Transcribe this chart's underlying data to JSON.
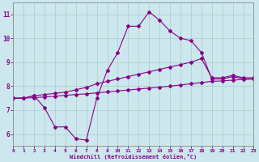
{
  "xlabel": "Windchill (Refroidissement éolien,°C)",
  "background_color": "#cce8ee",
  "grid_color": "#aaccc4",
  "line_color": "#880088",
  "xlim": [
    0,
    23
  ],
  "ylim": [
    5.5,
    11.5
  ],
  "xticks": [
    0,
    1,
    2,
    3,
    4,
    5,
    6,
    7,
    8,
    9,
    10,
    11,
    12,
    13,
    14,
    15,
    16,
    17,
    18,
    19,
    20,
    21,
    22,
    23
  ],
  "yticks": [
    6,
    7,
    8,
    9,
    10,
    11
  ],
  "line1_x": [
    0,
    1,
    2,
    3,
    4,
    5,
    6,
    7,
    8,
    9,
    10,
    11,
    12,
    13,
    14,
    15,
    16,
    17,
    18,
    19,
    20,
    21,
    22,
    23
  ],
  "line1_y": [
    7.5,
    7.5,
    7.6,
    7.1,
    6.3,
    6.3,
    5.8,
    5.75,
    7.5,
    8.65,
    9.4,
    10.5,
    10.5,
    11.1,
    10.75,
    10.3,
    10.0,
    9.9,
    9.4,
    8.3,
    8.3,
    8.4,
    8.3,
    8.3
  ],
  "line2_x": [
    0,
    1,
    2,
    3,
    4,
    5,
    6,
    7,
    8,
    9,
    10,
    11,
    12,
    13,
    14,
    15,
    16,
    17,
    18,
    19,
    20,
    21,
    22,
    23
  ],
  "line2_y": [
    7.5,
    7.5,
    7.6,
    7.65,
    7.7,
    7.75,
    7.85,
    7.95,
    8.1,
    8.2,
    8.3,
    8.4,
    8.5,
    8.6,
    8.7,
    8.8,
    8.9,
    9.0,
    9.15,
    8.35,
    8.35,
    8.45,
    8.35,
    8.35
  ],
  "line3_x": [
    0,
    1,
    2,
    3,
    4,
    5,
    6,
    7,
    8,
    9,
    10,
    11,
    12,
    13,
    14,
    15,
    16,
    17,
    18,
    19,
    20,
    21,
    22,
    23
  ],
  "line3_y": [
    7.5,
    7.5,
    7.52,
    7.55,
    7.58,
    7.62,
    7.65,
    7.68,
    7.72,
    7.76,
    7.8,
    7.84,
    7.88,
    7.92,
    7.96,
    8.0,
    8.05,
    8.1,
    8.15,
    8.2,
    8.22,
    8.25,
    8.28,
    8.3
  ]
}
